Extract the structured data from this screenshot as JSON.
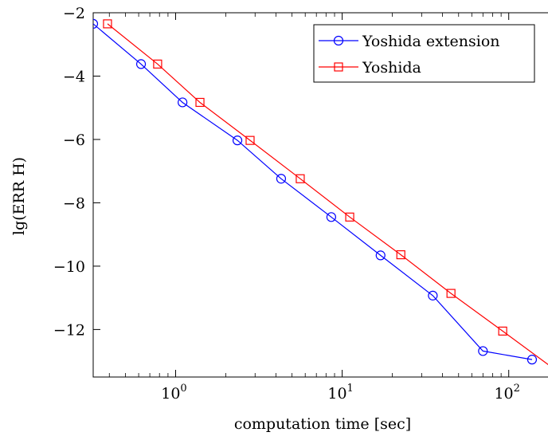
{
  "chart_data": {
    "type": "line",
    "title": "",
    "xlabel": "computation time [sec]",
    "ylabel": "lg(ERR H)",
    "x_scale": "log",
    "xlim": [
      0.32,
      190
    ],
    "ylim": [
      -13.5,
      -2
    ],
    "x_ticks": [
      1,
      10,
      100
    ],
    "x_tick_labels": [
      "10",
      "10",
      "10"
    ],
    "x_tick_exponents": [
      "0",
      "1",
      "2"
    ],
    "y_ticks": [
      -2,
      -4,
      -6,
      -8,
      -10,
      -12
    ],
    "y_tick_labels": [
      "−2",
      "−4",
      "−6",
      "−8",
      "−10",
      "−12"
    ],
    "grid": false,
    "legend_position": "top-right",
    "series": [
      {
        "name": "Yoshida extension",
        "color": "#0000ff",
        "marker": "circle",
        "x": [
          0.32,
          0.62,
          1.1,
          2.35,
          4.3,
          8.6,
          17,
          35,
          70,
          138
        ],
        "y": [
          -2.35,
          -3.62,
          -4.83,
          -6.03,
          -7.24,
          -8.45,
          -9.66,
          -10.93,
          -12.68,
          -12.95
        ]
      },
      {
        "name": "Yoshida",
        "color": "#ff0000",
        "marker": "square",
        "x": [
          0.39,
          0.78,
          1.4,
          2.8,
          5.6,
          11.1,
          22.5,
          45,
          92,
          190
        ],
        "y": [
          -2.35,
          -3.62,
          -4.83,
          -6.03,
          -7.24,
          -8.45,
          -9.64,
          -10.86,
          -12.05,
          -13.27
        ]
      }
    ]
  }
}
